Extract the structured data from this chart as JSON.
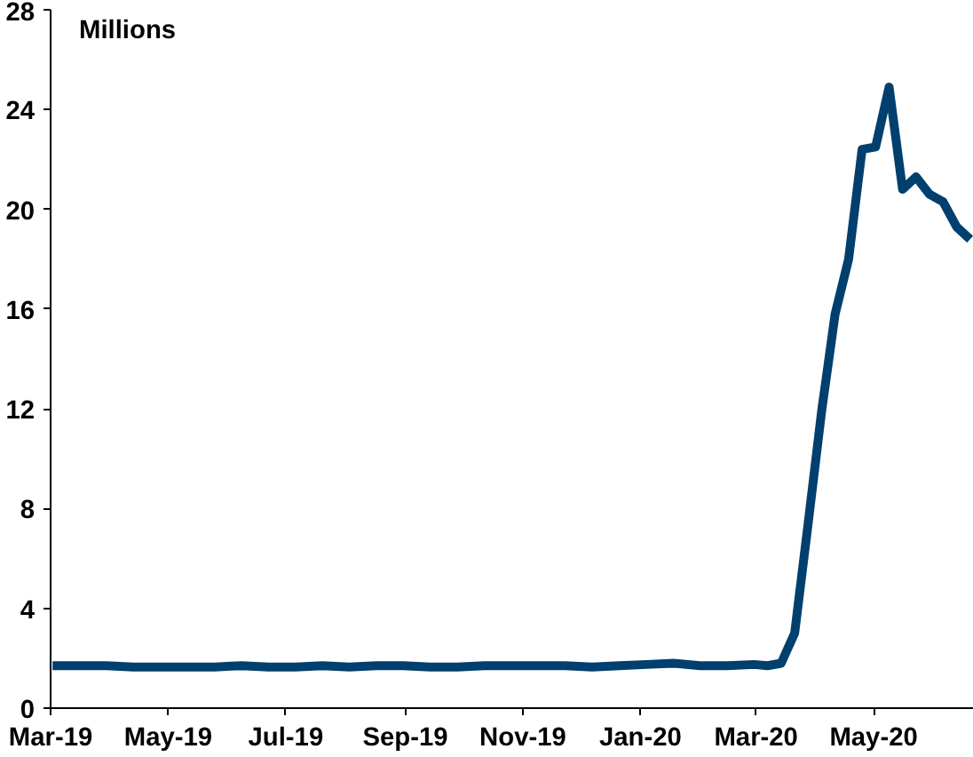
{
  "chart_data": {
    "type": "line",
    "ylabel": "Millions",
    "x": [
      "2019-03-02",
      "2019-03-16",
      "2019-03-30",
      "2019-04-13",
      "2019-04-27",
      "2019-05-11",
      "2019-05-25",
      "2019-06-08",
      "2019-06-22",
      "2019-07-06",
      "2019-07-20",
      "2019-08-03",
      "2019-08-17",
      "2019-08-31",
      "2019-09-14",
      "2019-09-28",
      "2019-10-12",
      "2019-10-26",
      "2019-11-09",
      "2019-11-23",
      "2019-12-07",
      "2019-12-21",
      "2020-01-04",
      "2020-01-18",
      "2020-02-01",
      "2020-02-15",
      "2020-02-29",
      "2020-03-07",
      "2020-03-14",
      "2020-03-21",
      "2020-03-28",
      "2020-04-04",
      "2020-04-11",
      "2020-04-18",
      "2020-04-25",
      "2020-05-02",
      "2020-05-09",
      "2020-05-16",
      "2020-05-23",
      "2020-05-30",
      "2020-06-06",
      "2020-06-13",
      "2020-06-20"
    ],
    "series": [
      {
        "color": "#003f6e",
        "values": [
          1.7,
          1.7,
          1.7,
          1.65,
          1.65,
          1.65,
          1.65,
          1.7,
          1.65,
          1.65,
          1.7,
          1.65,
          1.7,
          1.7,
          1.65,
          1.65,
          1.7,
          1.7,
          1.7,
          1.7,
          1.65,
          1.7,
          1.75,
          1.8,
          1.7,
          1.7,
          1.75,
          1.7,
          1.8,
          3.0,
          7.4,
          11.9,
          15.8,
          18.0,
          22.4,
          22.5,
          24.9,
          20.8,
          21.3,
          20.6,
          20.3,
          19.3,
          18.8
        ]
      }
    ],
    "xlim": [
      "2019-03-01",
      "2020-06-22"
    ],
    "xticks": [
      {
        "value": "2019-03-01",
        "label": "Mar-19"
      },
      {
        "value": "2019-05-01",
        "label": "May-19"
      },
      {
        "value": "2019-07-01",
        "label": "Jul-19"
      },
      {
        "value": "2019-09-01",
        "label": "Sep-19"
      },
      {
        "value": "2019-11-01",
        "label": "Nov-19"
      },
      {
        "value": "2020-01-01",
        "label": "Jan-20"
      },
      {
        "value": "2020-03-01",
        "label": "Mar-20"
      },
      {
        "value": "2020-05-01",
        "label": "May-20"
      }
    ],
    "ylim": [
      0,
      28
    ],
    "yticks": [
      0,
      4,
      8,
      12,
      16,
      20,
      24,
      28
    ],
    "grid": false,
    "marker": "none",
    "line_style": "solid"
  }
}
